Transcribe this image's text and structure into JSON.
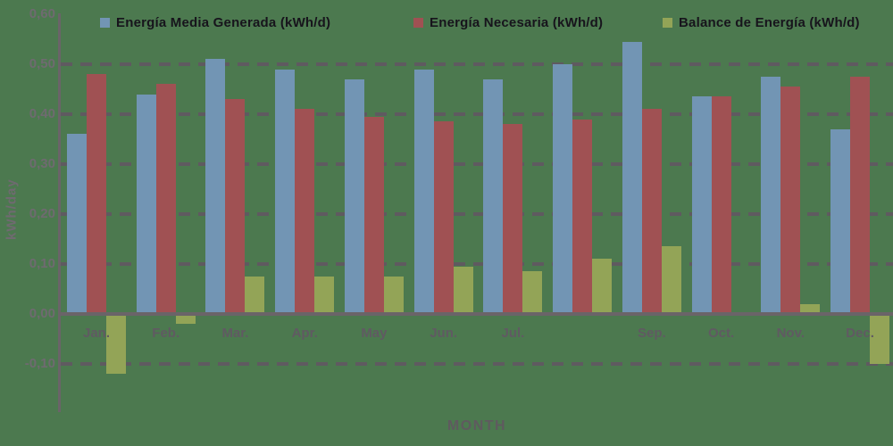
{
  "colors": {
    "background": "#4c794f",
    "series_generada": "#7295b4",
    "series_necesaria": "#a05153",
    "series_balance": "#93a457",
    "axis": "#6a6468",
    "gridline": "#5f5a60",
    "tick_text": "#6f6a70",
    "month_text": "#605a62",
    "legend_text": "#17141c"
  },
  "legend": {
    "entries": [
      {
        "label": "Energía Media Generada (kWh/d)",
        "color": "#7295b4"
      },
      {
        "label": "Energía Necesaria (kWh/d)",
        "color": "#a05153"
      },
      {
        "label": "Balance de Energía (kWh/d)",
        "color": "#93a457"
      }
    ]
  },
  "chart_data": {
    "type": "bar",
    "title": "",
    "xlabel": "MONTH",
    "ylabel": "kWh/day",
    "ylim": [
      -0.2,
      0.6
    ],
    "grid": "dashed horizontal",
    "legend_position": "top",
    "decimal_separator": ",",
    "categories": [
      "Jan.",
      "Feb.",
      "Mar.",
      "Apr.",
      "May",
      "Jun.",
      "Jul.",
      "",
      "Sep.",
      "Oct.",
      "Nov.",
      "Dec."
    ],
    "series": [
      {
        "name": "Energía Media Generada (kWh/d)",
        "color": "#7295b4",
        "values": [
          0.36,
          0.44,
          0.51,
          0.49,
          0.47,
          0.49,
          0.47,
          0.5,
          0.545,
          0.435,
          0.475,
          0.37
        ]
      },
      {
        "name": "Energía Necesaria (kWh/d)",
        "color": "#a05153",
        "values": [
          0.48,
          0.46,
          0.43,
          0.41,
          0.395,
          0.385,
          0.38,
          0.39,
          0.41,
          0.435,
          0.455,
          0.475
        ]
      },
      {
        "name": "Balance de Energía (kWh/d)",
        "color": "#93a457",
        "values": [
          -0.12,
          -0.02,
          0.075,
          0.075,
          0.075,
          0.095,
          0.085,
          0.11,
          0.135,
          0.0,
          0.02,
          -0.1
        ]
      }
    ],
    "y_ticks": [
      {
        "label": "0,60",
        "value": 0.6,
        "gridline": false
      },
      {
        "label": "0,50",
        "value": 0.5,
        "gridline": true
      },
      {
        "label": "0,40",
        "value": 0.4,
        "gridline": true
      },
      {
        "label": "0,30",
        "value": 0.3,
        "gridline": true
      },
      {
        "label": "0,20",
        "value": 0.2,
        "gridline": true
      },
      {
        "label": "0,10",
        "value": 0.1,
        "gridline": true
      },
      {
        "label": "0,00",
        "value": 0.0,
        "gridline": false
      },
      {
        "label": "-0,10",
        "value": -0.1,
        "gridline": true
      }
    ]
  }
}
